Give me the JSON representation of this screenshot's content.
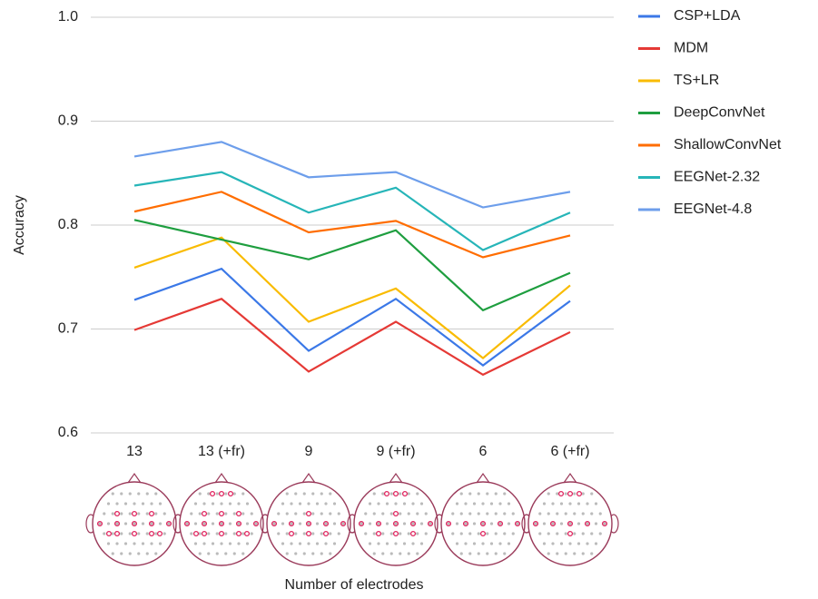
{
  "chart_data": {
    "type": "line",
    "x_label": "Number of electrodes",
    "y_label": "Accuracy",
    "categories": [
      "13",
      "13 (+fr)",
      "9",
      "9 (+fr)",
      "6",
      "6 (+fr)"
    ],
    "ylim": [
      0.6,
      1.0
    ],
    "yticks": [
      0.6,
      0.7,
      0.8,
      0.9,
      {
        "value": 1.0,
        "label": "1.0"
      }
    ],
    "grid": true,
    "legend": "right",
    "series": [
      {
        "name": "CSP+LDA",
        "color": "#3b78e7",
        "values": [
          0.728,
          0.758,
          0.679,
          0.729,
          0.665,
          0.727
        ]
      },
      {
        "name": "MDM",
        "color": "#e53935",
        "values": [
          0.699,
          0.729,
          0.659,
          0.707,
          0.656,
          0.697
        ]
      },
      {
        "name": "TS+LR",
        "color": "#f9bb00",
        "values": [
          0.759,
          0.788,
          0.707,
          0.739,
          0.672,
          0.742
        ]
      },
      {
        "name": "DeepConvNet",
        "color": "#1e9e3f",
        "values": [
          0.805,
          0.786,
          0.767,
          0.795,
          0.718,
          0.754
        ]
      },
      {
        "name": "ShallowConvNet",
        "color": "#ff6d00",
        "values": [
          0.813,
          0.832,
          0.793,
          0.804,
          0.769,
          0.79
        ]
      },
      {
        "name": "EEGNet-2.32",
        "color": "#26b5b8",
        "values": [
          0.838,
          0.851,
          0.812,
          0.836,
          0.776,
          0.812
        ]
      },
      {
        "name": "EEGNet-4.8",
        "color": "#6d9eeb",
        "values": [
          0.866,
          0.88,
          0.846,
          0.851,
          0.817,
          0.832
        ]
      }
    ]
  }
}
